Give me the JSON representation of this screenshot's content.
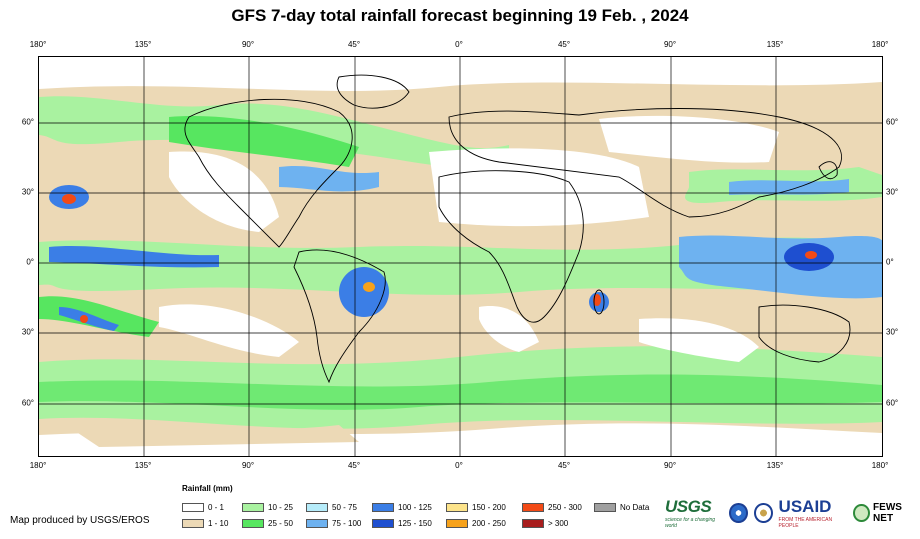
{
  "title": "GFS 7-day total rainfall forecast beginning 19 Feb. , 2024",
  "axes": {
    "top_lon_labels": [
      "180°",
      "135°",
      "90°",
      "45°",
      "0°",
      "45°",
      "90°",
      "135°",
      "180°"
    ],
    "bottom_lon_labels": [
      "180°",
      "135°",
      "90°",
      "45°",
      "0°",
      "45°",
      "90°",
      "135°",
      "180°"
    ],
    "left_lat_labels": [
      "60°",
      "30°",
      "0°",
      "30°",
      "60°"
    ],
    "right_lat_labels": [
      "60°",
      "30°",
      "0°",
      "30°",
      "60°"
    ],
    "lon_range": [
      -180,
      180
    ],
    "lat_range": [
      -85,
      85
    ],
    "gridlines": true
  },
  "legend": {
    "title": "Rainfall (mm)",
    "items": [
      {
        "label": "0 - 1",
        "color": "#ffffff"
      },
      {
        "label": "1 - 10",
        "color": "#ecd9b6"
      },
      {
        "label": "10 - 25",
        "color": "#a9f2a0"
      },
      {
        "label": "25 - 50",
        "color": "#57e660"
      },
      {
        "label": "50 - 75",
        "color": "#b6ecfa"
      },
      {
        "label": "75 - 100",
        "color": "#6eb2f0"
      },
      {
        "label": "100 - 125",
        "color": "#3b7ee6"
      },
      {
        "label": "125 - 150",
        "color": "#1e4fd0"
      },
      {
        "label": "150 - 200",
        "color": "#fde48b"
      },
      {
        "label": "200 - 250",
        "color": "#f7a21b"
      },
      {
        "label": "250 - 300",
        "color": "#f24a16"
      },
      {
        "label": "> 300",
        "color": "#a81d1d"
      },
      {
        "label": "No Data",
        "color": "#a0a0a0"
      }
    ]
  },
  "credit": "Map produced by USGS/EROS",
  "logos": {
    "usgs": "USGS",
    "usgs_tagline": "science for a changing world",
    "usaid": "USAID",
    "usaid_tagline": "FROM THE AMERICAN PEOPLE",
    "fews": "FEWS NET",
    "icons": [
      "usgs-logo-icon",
      "noaa-seal-icon",
      "state-dept-seal-icon",
      "usaid-logo-icon",
      "fews-net-logo-icon"
    ]
  }
}
